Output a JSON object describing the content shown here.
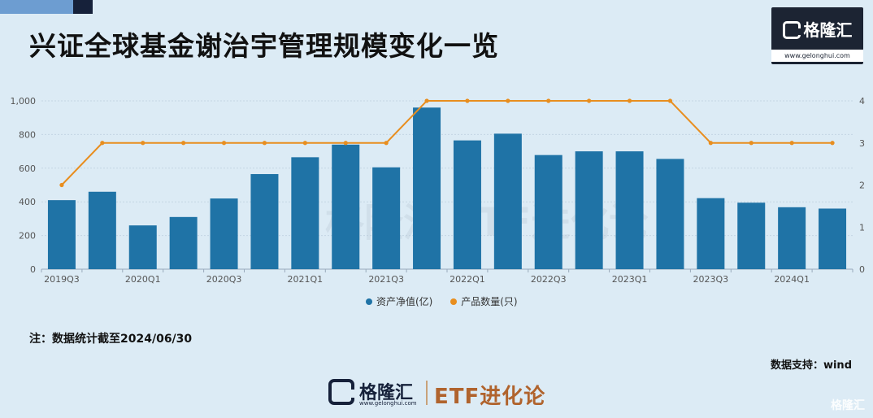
{
  "title": "兴证全球基金谢治宇管理规模变化一览",
  "brand": {
    "logo_name": "格隆汇",
    "logo_url": "www.gelonghui.com",
    "footer_etf": "ETF进化论",
    "corner_watermark": "格隆汇"
  },
  "note": "注：数据统计截至2024/06/30",
  "source": "数据支持：wind",
  "colors": {
    "bar": "#1f73a6",
    "line": "#e88e1f",
    "background": "#dcebf5"
  },
  "chart_data": {
    "type": "bar",
    "title": "",
    "categories": [
      "2019Q3",
      "2019Q4",
      "2020Q1",
      "2020Q2",
      "2020Q3",
      "2020Q4",
      "2021Q1",
      "2021Q2",
      "2021Q3",
      "2021Q4",
      "2022Q1",
      "2022Q2",
      "2022Q3",
      "2022Q4",
      "2023Q1",
      "2023Q2",
      "2023Q3",
      "2023Q4",
      "2024Q1",
      "2024Q2"
    ],
    "x_tick_labels": [
      "2019Q3",
      "",
      "2020Q1",
      "",
      "2020Q3",
      "",
      "2021Q1",
      "",
      "2021Q3",
      "",
      "2022Q1",
      "",
      "2022Q3",
      "",
      "2023Q1",
      "",
      "2023Q3",
      "",
      "2024Q1",
      ""
    ],
    "series": [
      {
        "name": "资产净值(亿)",
        "type": "bar",
        "axis": "left",
        "values": [
          410,
          460,
          260,
          310,
          420,
          565,
          665,
          740,
          605,
          960,
          765,
          805,
          678,
          700,
          700,
          655,
          422,
          395,
          368,
          360
        ]
      },
      {
        "name": "产品数量(只)",
        "type": "line",
        "axis": "right",
        "values": [
          2,
          3,
          3,
          3,
          3,
          3,
          3,
          3,
          3,
          4,
          4,
          4,
          4,
          4,
          4,
          4,
          3,
          3,
          3,
          3
        ]
      }
    ],
    "y_left": {
      "ylim": [
        0,
        1000
      ],
      "ticks": [
        "0",
        "200",
        "400",
        "600",
        "800",
        "1,000"
      ]
    },
    "y_right": {
      "ylim": [
        0,
        4
      ],
      "ticks": [
        "0",
        "1",
        "2",
        "3",
        "4"
      ]
    },
    "grid": true,
    "legend": "bottom"
  }
}
